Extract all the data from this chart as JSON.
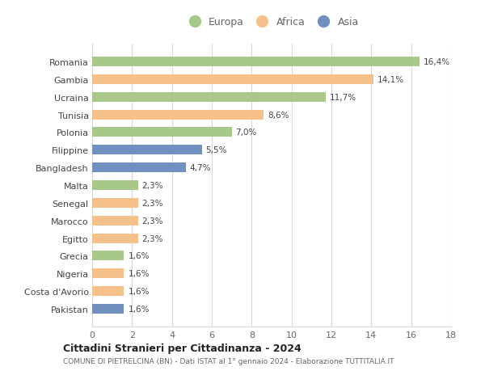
{
  "categories": [
    "Pakistan",
    "Costa d'Avorio",
    "Nigeria",
    "Grecia",
    "Egitto",
    "Marocco",
    "Senegal",
    "Malta",
    "Bangladesh",
    "Filippine",
    "Polonia",
    "Tunisia",
    "Ucraina",
    "Gambia",
    "Romania"
  ],
  "values": [
    1.6,
    1.6,
    1.6,
    1.6,
    2.3,
    2.3,
    2.3,
    2.3,
    4.7,
    5.5,
    7.0,
    8.6,
    11.7,
    14.1,
    16.4
  ],
  "labels": [
    "1,6%",
    "1,6%",
    "1,6%",
    "1,6%",
    "2,3%",
    "2,3%",
    "2,3%",
    "2,3%",
    "4,7%",
    "5,5%",
    "7,0%",
    "8,6%",
    "11,7%",
    "14,1%",
    "16,4%"
  ],
  "continents": [
    "Asia",
    "Africa",
    "Africa",
    "Europa",
    "Africa",
    "Africa",
    "Africa",
    "Europa",
    "Asia",
    "Asia",
    "Europa",
    "Africa",
    "Europa",
    "Africa",
    "Europa"
  ],
  "colors": {
    "Europa": "#a8c88a",
    "Africa": "#f5c08a",
    "Asia": "#7090c0"
  },
  "xlim": [
    0,
    18
  ],
  "xticks": [
    0,
    2,
    4,
    6,
    8,
    10,
    12,
    14,
    16,
    18
  ],
  "title": "Cittadini Stranieri per Cittadinanza - 2024",
  "subtitle": "COMUNE DI PIETRELCINA (BN) - Dati ISTAT al 1° gennaio 2024 - Elaborazione TUTTITALIA.IT",
  "bg_color": "#ffffff",
  "grid_color": "#d8d8d8",
  "bar_height": 0.55
}
